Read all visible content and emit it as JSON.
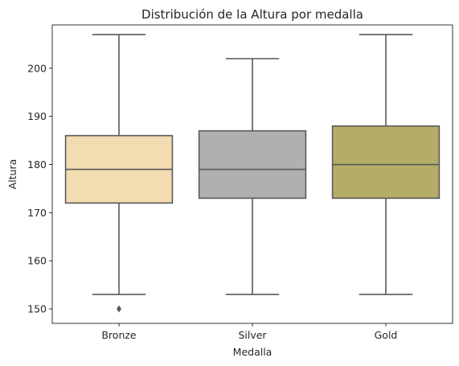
{
  "chart_data": {
    "type": "box",
    "title": "Distribución de la Altura por medalla",
    "xlabel": "Medalla",
    "ylabel": "Altura",
    "ylim": [
      147,
      209
    ],
    "yticks": [
      150,
      160,
      170,
      180,
      190,
      200
    ],
    "grid": false,
    "categories": [
      "Bronze",
      "Silver",
      "Gold"
    ],
    "series": [
      {
        "category": "Bronze",
        "color": "#f3dcb2",
        "whisker_low": 153,
        "q1": 172,
        "median": 179,
        "q3": 186,
        "whisker_high": 207,
        "outliers": [
          150
        ]
      },
      {
        "category": "Silver",
        "color": "#b0b0b0",
        "whisker_low": 153,
        "q1": 173,
        "median": 179,
        "q3": 187,
        "whisker_high": 202,
        "outliers": []
      },
      {
        "category": "Gold",
        "color": "#b5ad67",
        "whisker_low": 153,
        "q1": 173,
        "median": 180,
        "q3": 188,
        "whisker_high": 207,
        "outliers": []
      }
    ],
    "line_color": "#595959"
  }
}
